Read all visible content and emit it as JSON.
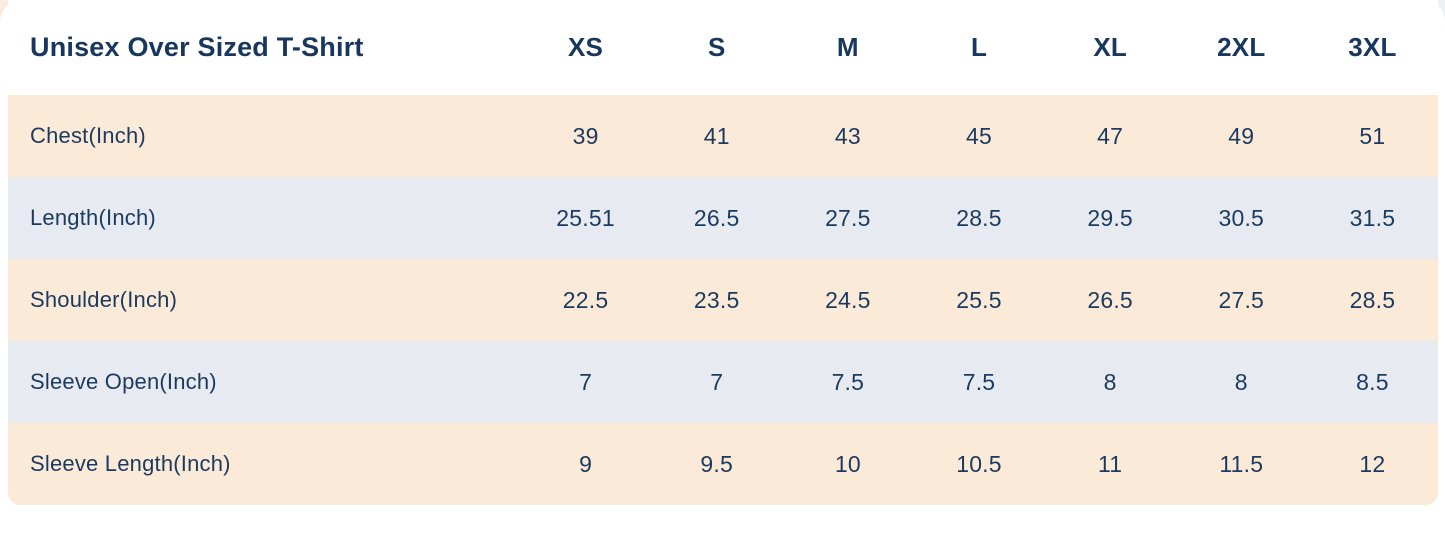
{
  "chart_data": {
    "type": "table",
    "title": "Unisex Over Sized T-Shirt",
    "columns": [
      "XS",
      "S",
      "M",
      "L",
      "XL",
      "2XL",
      "3XL"
    ],
    "rows": [
      {
        "label": "Chest(Inch)",
        "values": [
          "39",
          "41",
          "43",
          "45",
          "47",
          "49",
          "51"
        ]
      },
      {
        "label": "Length(Inch)",
        "values": [
          "25.51",
          "26.5",
          "27.5",
          "28.5",
          "29.5",
          "30.5",
          "31.5"
        ]
      },
      {
        "label": "Shoulder(Inch)",
        "values": [
          "22.5",
          "23.5",
          "24.5",
          "25.5",
          "26.5",
          "27.5",
          "28.5"
        ]
      },
      {
        "label": "Sleeve Open(Inch)",
        "values": [
          "7",
          "7",
          "7.5",
          "7.5",
          "8",
          "8",
          "8.5"
        ]
      },
      {
        "label": "Sleeve Length(Inch)",
        "values": [
          "9",
          "9.5",
          "10",
          "10.5",
          "11",
          "11.5",
          "12"
        ]
      }
    ],
    "layout": {
      "stripe_pattern": "alternating",
      "gridlines": false,
      "legend": "none"
    },
    "colors": {
      "stripe_peach": "#fcead9",
      "stripe_blue": "#e7ebf1",
      "text_navy": "#17375e",
      "background": "#ffffff"
    }
  }
}
